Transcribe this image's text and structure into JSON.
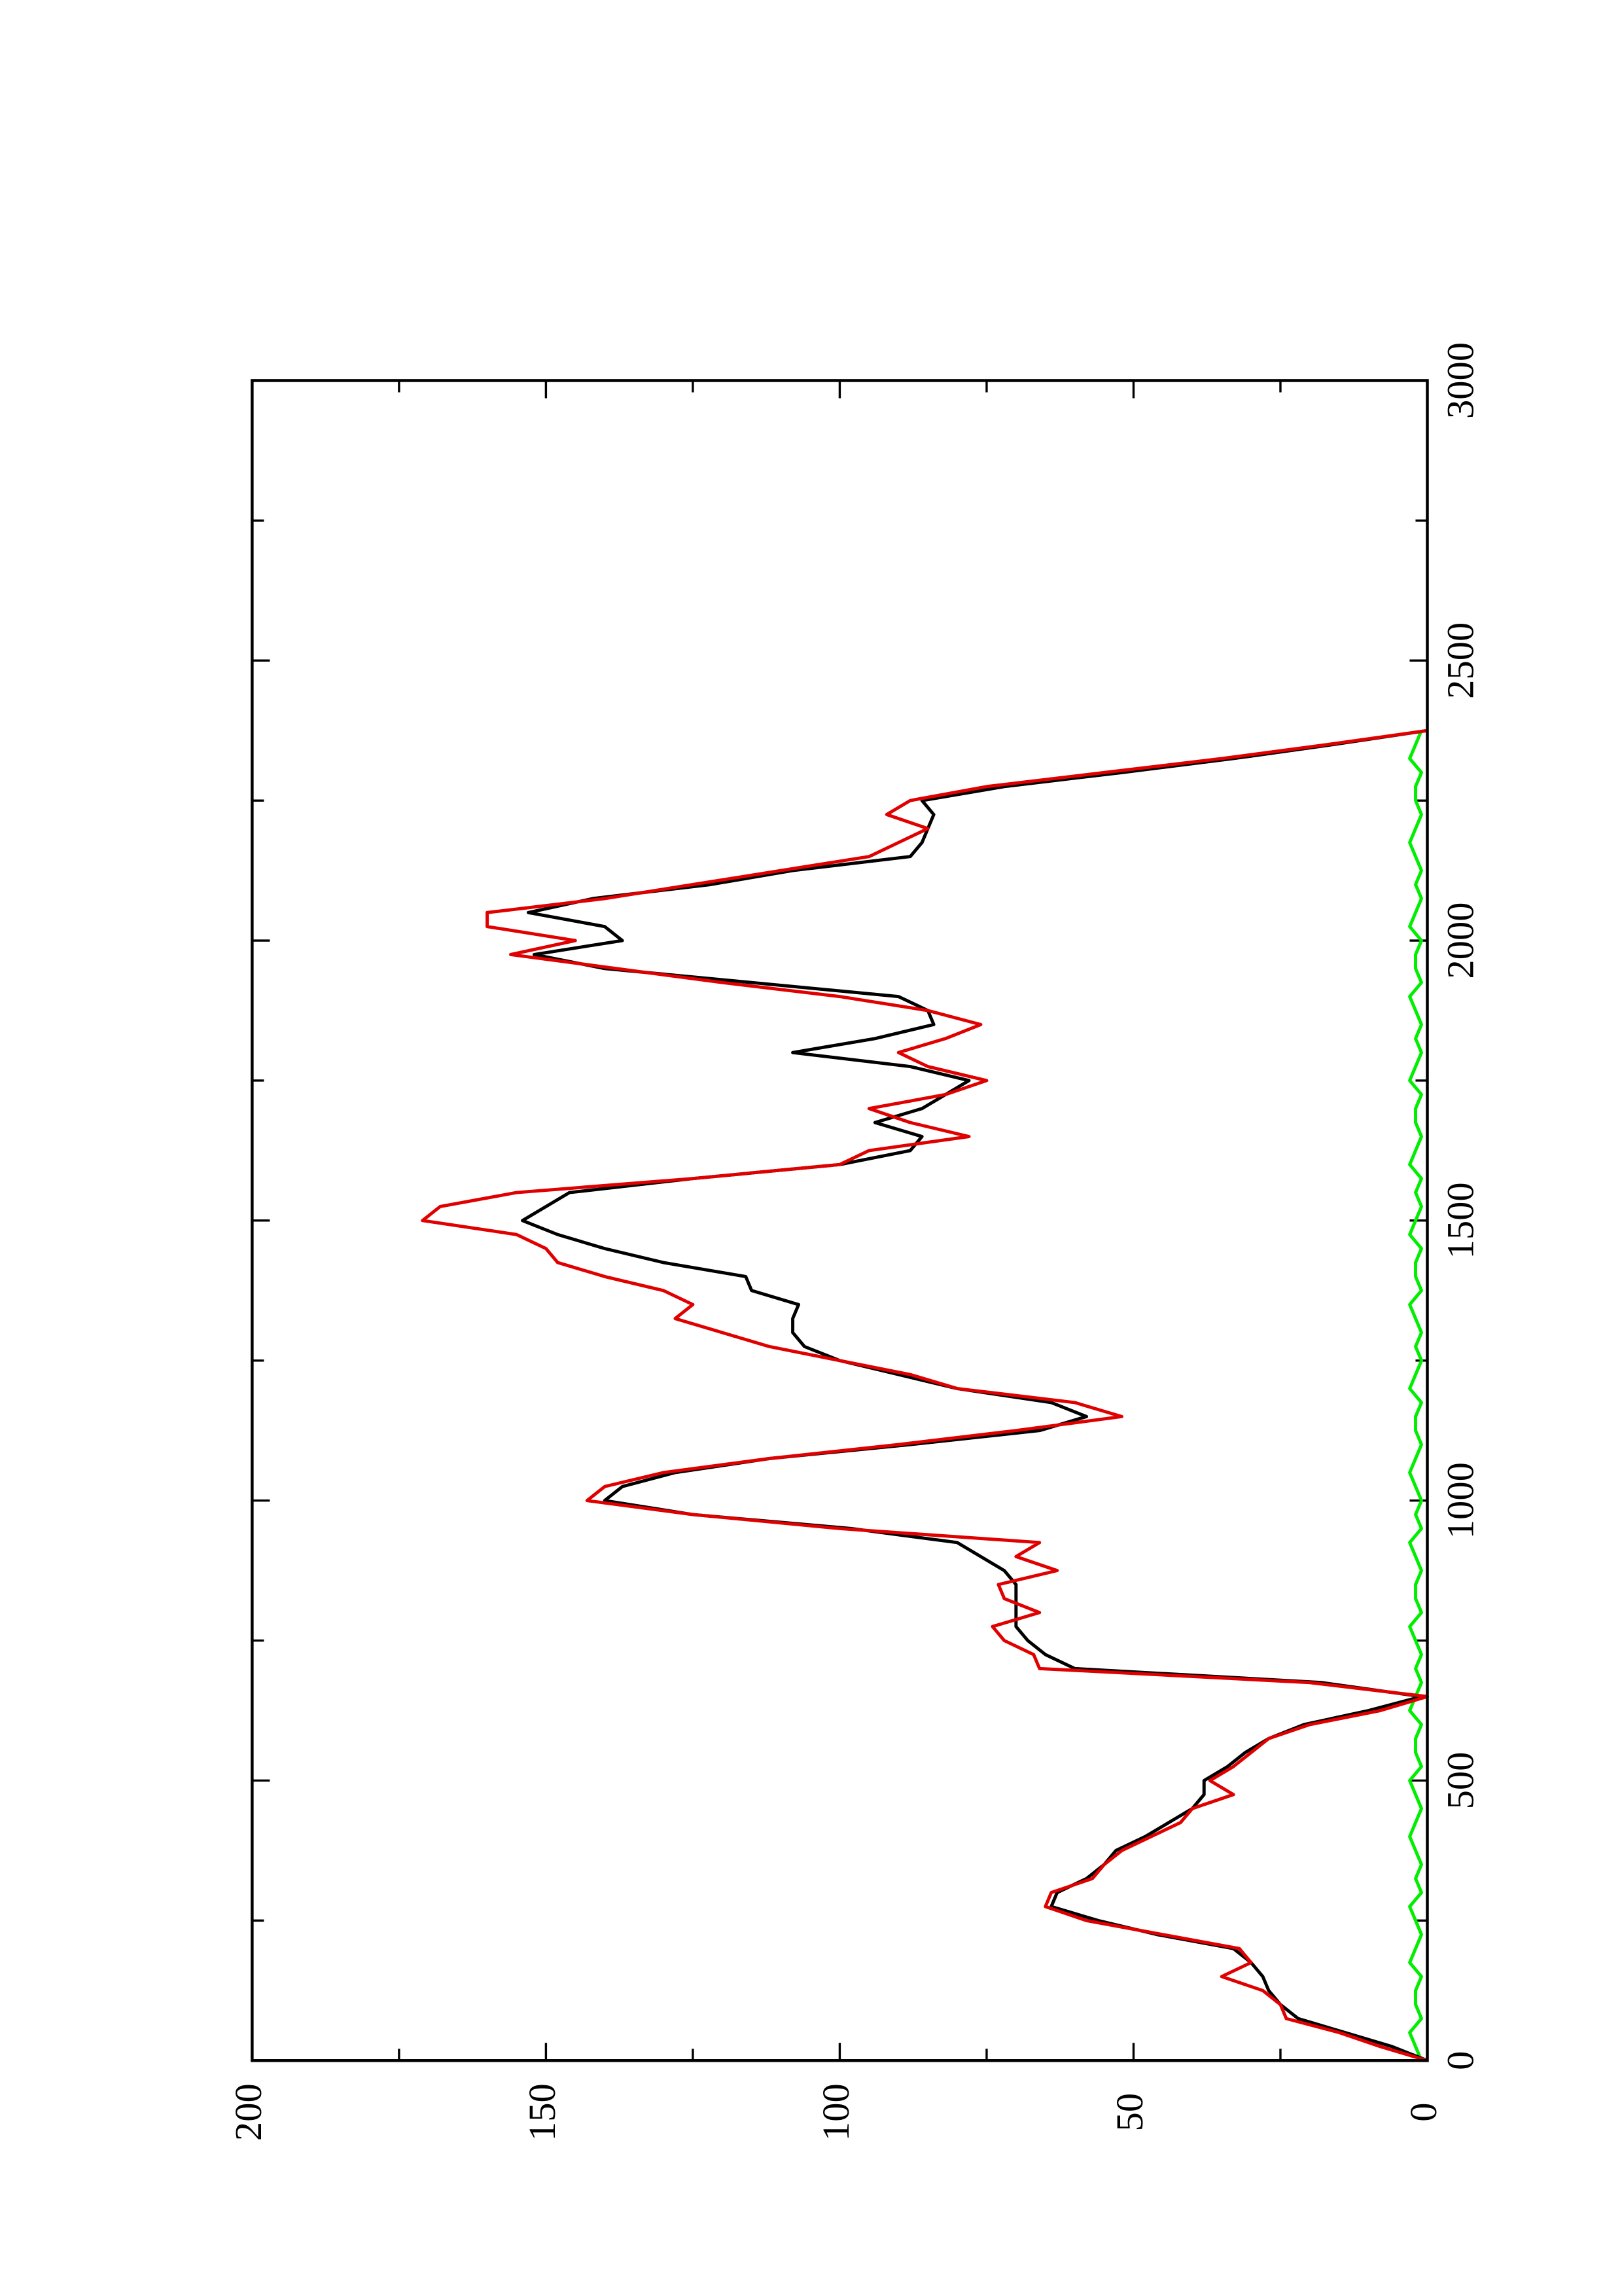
{
  "chart_data": {
    "type": "line",
    "x": [
      0,
      25,
      50,
      75,
      100,
      125,
      150,
      175,
      200,
      225,
      250,
      275,
      300,
      325,
      350,
      375,
      400,
      425,
      450,
      475,
      500,
      525,
      550,
      575,
      600,
      625,
      650,
      675,
      700,
      725,
      750,
      775,
      800,
      825,
      850,
      875,
      900,
      925,
      950,
      975,
      1000,
      1025,
      1050,
      1075,
      1100,
      1125,
      1150,
      1175,
      1200,
      1225,
      1250,
      1275,
      1300,
      1325,
      1350,
      1375,
      1400,
      1425,
      1450,
      1475,
      1500,
      1525,
      1550,
      1575,
      1600,
      1625,
      1650,
      1675,
      1700,
      1725,
      1750,
      1775,
      1800,
      1825,
      1850,
      1875,
      1900,
      1925,
      1950,
      1975,
      2000,
      2025,
      2050,
      2075,
      2100,
      2125,
      2150,
      2175,
      2200,
      2225,
      2250,
      2275,
      2300,
      2325,
      2350,
      2375
    ],
    "series": [
      {
        "color": "#00ee00",
        "values": [
          1,
          2,
          3,
          1,
          2,
          2,
          1,
          3,
          2,
          1,
          2,
          3,
          1,
          2,
          1,
          2,
          3,
          2,
          1,
          2,
          3,
          1,
          2,
          2,
          1,
          3,
          2,
          1,
          2,
          1,
          2,
          3,
          1,
          2,
          2,
          1,
          2,
          3,
          1,
          2,
          1,
          2,
          3,
          2,
          1,
          2,
          2,
          1,
          3,
          2,
          1,
          2,
          1,
          2,
          3,
          1,
          2,
          2,
          1,
          3,
          2,
          1,
          2,
          1,
          3,
          2,
          1,
          2,
          2,
          1,
          3,
          2,
          1,
          2,
          1,
          2,
          3,
          1,
          2,
          2,
          1,
          3,
          2,
          1,
          2,
          1,
          2,
          3,
          2,
          1,
          2,
          2,
          1,
          3,
          2,
          1
        ]
      },
      {
        "color": "#000000",
        "values": [
          0,
          6,
          14,
          22,
          25,
          27,
          28,
          30,
          33,
          46,
          56,
          64,
          63,
          58,
          55,
          53,
          48,
          44,
          40,
          38,
          38,
          34,
          31,
          27,
          21,
          10,
          1,
          18,
          60,
          65,
          68,
          70,
          70,
          70,
          70,
          72,
          76,
          80,
          98,
          125,
          140,
          137,
          128,
          112,
          88,
          66,
          58,
          64,
          80,
          90,
          100,
          106,
          108,
          108,
          107,
          115,
          116,
          130,
          140,
          148,
          154,
          150,
          146,
          125,
          100,
          88,
          86,
          94,
          86,
          82,
          78,
          88,
          108,
          94,
          84,
          85,
          90,
          115,
          140,
          152,
          137,
          140,
          153,
          142,
          122,
          108,
          88,
          86,
          85,
          84,
          86,
          72,
          52,
          33,
          16,
          0
        ]
      },
      {
        "color": "#e00000",
        "values": [
          0,
          8,
          15,
          24,
          25,
          28,
          35,
          30,
          32,
          45,
          58,
          65,
          64,
          57,
          55,
          52,
          47,
          42,
          40,
          33,
          37,
          33,
          30,
          27,
          20,
          8,
          0,
          20,
          66,
          67,
          72,
          74,
          66,
          72,
          73,
          63,
          70,
          66,
          100,
          125,
          143,
          140,
          130,
          112,
          90,
          70,
          52,
          60,
          80,
          88,
          100,
          112,
          120,
          128,
          125,
          130,
          140,
          148,
          150,
          155,
          171,
          168,
          155,
          125,
          100,
          95,
          78,
          88,
          95,
          82,
          75,
          85,
          90,
          82,
          76,
          85,
          100,
          120,
          138,
          156,
          145,
          160,
          160,
          140,
          125,
          110,
          95,
          90,
          85,
          92,
          88,
          75,
          55,
          35,
          17,
          0
        ]
      }
    ],
    "xlim": [
      0,
      3000
    ],
    "xticks": [
      0,
      500,
      1000,
      1500,
      2000,
      2500,
      3000
    ],
    "xminorticks": [
      250,
      750,
      1250,
      1750,
      2250,
      2750
    ],
    "ylim": [
      0,
      200
    ],
    "yticks": [
      0,
      50,
      100,
      150,
      200
    ],
    "yminorticks": [
      25,
      75,
      125,
      175
    ],
    "rotated": true
  }
}
